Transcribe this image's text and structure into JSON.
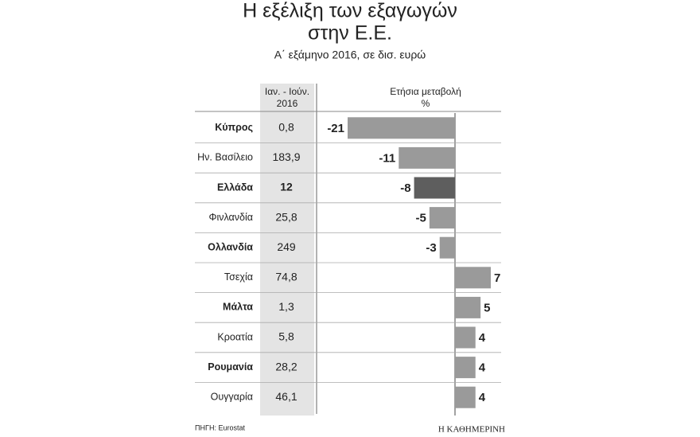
{
  "chart_data": {
    "type": "hbar",
    "title": [
      "Η εξέλιξη των εξαγωγών",
      "στην Ε.Ε."
    ],
    "subtitle": "Α΄ εξάμηνο 2016, σε δισ. ευρώ",
    "column_headers": [
      [
        "Ιαν. - Ιούν.",
        "2016"
      ],
      [
        "Ετήσια μεταβολή",
        "%"
      ]
    ],
    "categories": [
      "Κύπρος",
      "Ην. Βασίλειο",
      "Ελλάδα",
      "Φινλανδία",
      "Ολλανδία",
      "Τσεχία",
      "Μάλτα",
      "Κροατία",
      "Ρουμανία",
      "Ουγγαρία"
    ],
    "bold": [
      true,
      false,
      true,
      false,
      true,
      false,
      true,
      false,
      true,
      false
    ],
    "exports": [
      "0,8",
      "183,9",
      "12",
      "25,8",
      "249",
      "74,8",
      "1,3",
      "5,8",
      "28,2",
      "46,1"
    ],
    "values": [
      -21,
      -11,
      -8,
      -5,
      -3,
      7,
      5,
      4,
      4,
      4
    ],
    "colors": [
      "#9a9a9a",
      "#9a9a9a",
      "#5e5e5e",
      "#9a9a9a",
      "#9a9a9a",
      "#9a9a9a",
      "#9a9a9a",
      "#9a9a9a",
      "#9a9a9a",
      "#9a9a9a"
    ],
    "source": "ΠΗΓΗ: Eurostat",
    "credit": "Η ΚΑΘΗΜΕΡΙΝΗ"
  }
}
